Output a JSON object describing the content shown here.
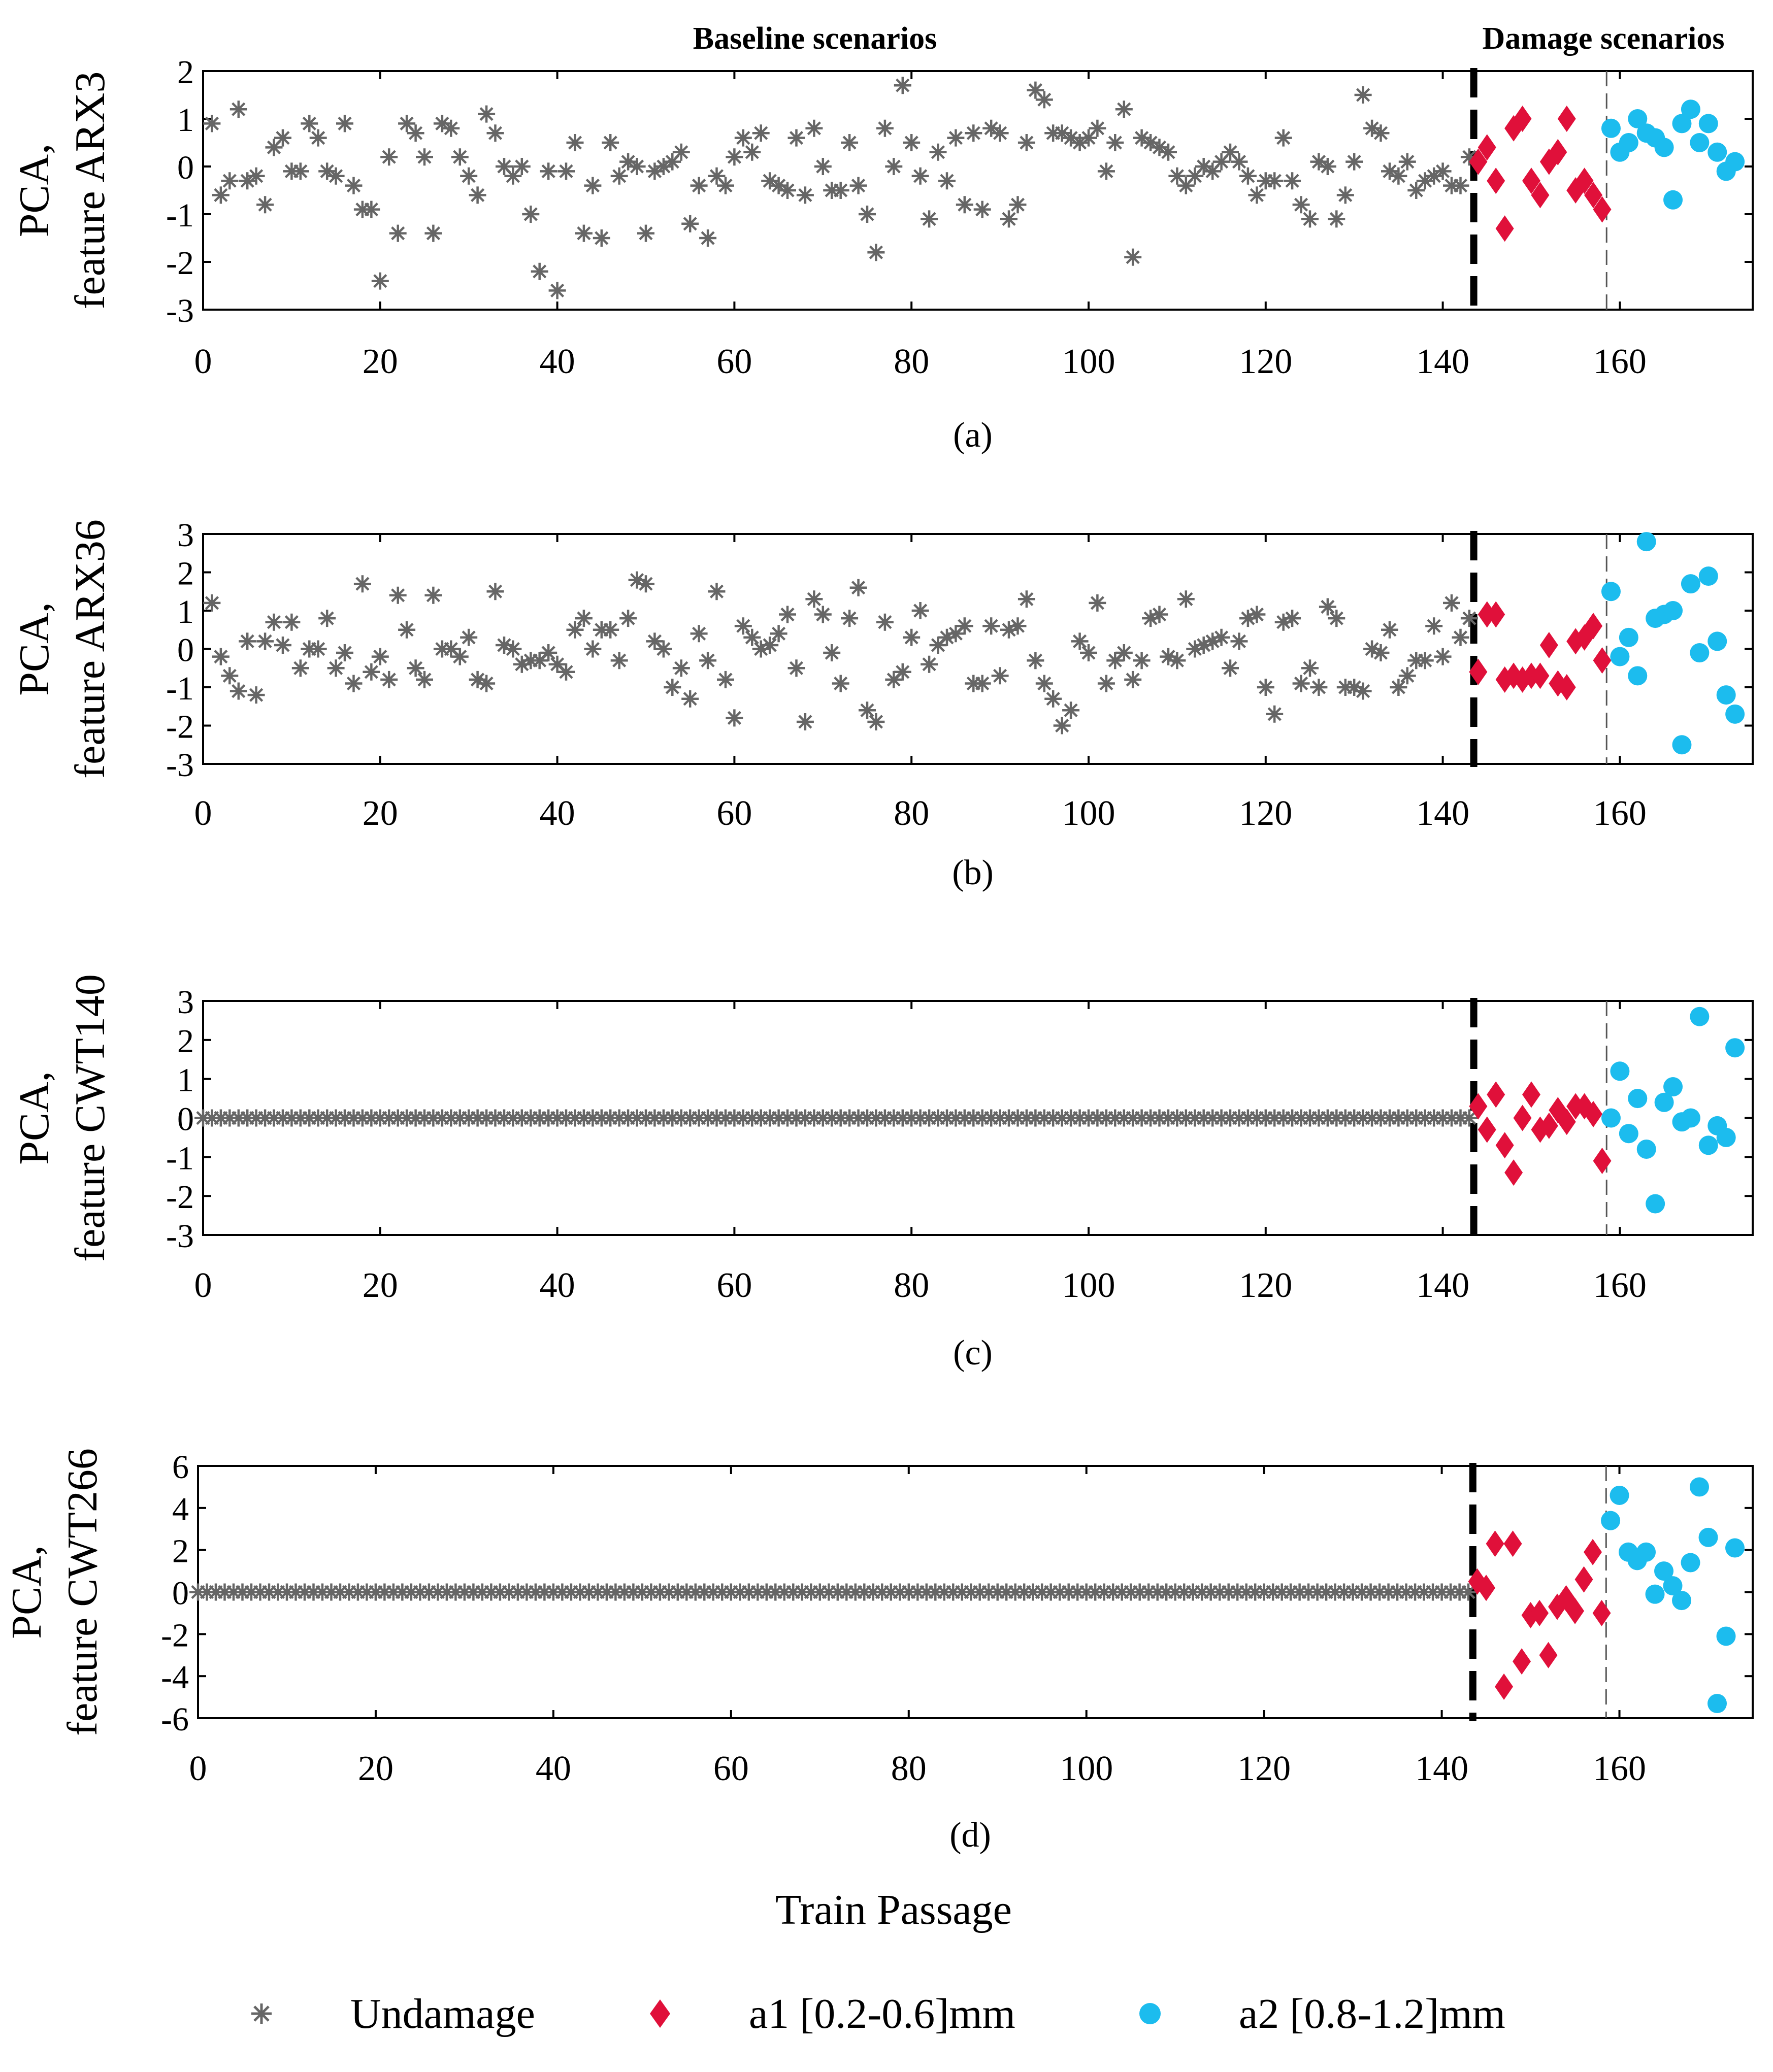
{
  "figure": {
    "baseline_label": "Baseline scenarios",
    "damage_label": "Damage scenarios",
    "xlabel": "Train Passage",
    "legend": [
      {
        "label": "Undamage",
        "marker": "star",
        "color": "#666666"
      },
      {
        "label": "a1 [0.2-0.6]mm",
        "marker": "diamond",
        "color": "#e0103a"
      },
      {
        "label": "a2 [0.8-1.2]mm",
        "marker": "circle",
        "color": "#1cbcee"
      }
    ],
    "colors": {
      "undamaged": "#666666",
      "a1": "#e0103a",
      "a2": "#1cbcee",
      "axis": "#000000"
    }
  },
  "chart_data": [
    {
      "type": "scatter",
      "panel": "(a)",
      "ylabel_line1": "PCA,",
      "ylabel_line2": "feature ARX3",
      "xlim": [
        0,
        175
      ],
      "ylim": [
        -3,
        2
      ],
      "xticks": [
        0,
        20,
        40,
        60,
        80,
        100,
        120,
        140,
        160
      ],
      "yticks": [
        -3,
        -2,
        -1,
        0,
        1,
        2
      ],
      "damage_start": 144,
      "a2_start": 159,
      "series": [
        {
          "name": "Undamage",
          "x": [
            1,
            2,
            3,
            4,
            5,
            6,
            7,
            8,
            9,
            10,
            11,
            12,
            13,
            14,
            15,
            16,
            17,
            18,
            19,
            20,
            21,
            22,
            23,
            24,
            25,
            26,
            27,
            28,
            29,
            30,
            31,
            32,
            33,
            34,
            35,
            36,
            37,
            38,
            39,
            40,
            41,
            42,
            43,
            44,
            45,
            46,
            47,
            48,
            49,
            50,
            51,
            52,
            53,
            54,
            55,
            56,
            57,
            58,
            59,
            60,
            61,
            62,
            63,
            64,
            65,
            66,
            67,
            68,
            69,
            70,
            71,
            72,
            73,
            74,
            75,
            76,
            77,
            78,
            79,
            80,
            81,
            82,
            83,
            84,
            85,
            86,
            87,
            88,
            89,
            90,
            91,
            92,
            93,
            94,
            95,
            96,
            97,
            98,
            99,
            100,
            101,
            102,
            103,
            104,
            105,
            106,
            107,
            108,
            109,
            110,
            111,
            112,
            113,
            114,
            115,
            116,
            117,
            118,
            119,
            120,
            121,
            122,
            123,
            124,
            125,
            126,
            127,
            128,
            129,
            130,
            131,
            132,
            133,
            134,
            135,
            136,
            137,
            138,
            139,
            140,
            141,
            142,
            143
          ],
          "y": [
            0.9,
            -0.6,
            -0.3,
            1.2,
            -0.3,
            -0.2,
            -0.8,
            0.4,
            0.6,
            -0.1,
            -0.1,
            0.9,
            0.6,
            -0.1,
            -0.2,
            0.9,
            -0.4,
            -0.9,
            -0.9,
            -2.4,
            0.2,
            -1.4,
            0.9,
            0.7,
            0.2,
            -1.4,
            0.9,
            0.8,
            0.2,
            -0.2,
            -0.6,
            1.1,
            0.7,
            0.0,
            -0.2,
            0.0,
            -1.0,
            -2.2,
            -0.1,
            -2.6,
            -0.1,
            0.5,
            -1.4,
            -0.4,
            -1.5,
            0.5,
            -0.2,
            0.1,
            0.0,
            -1.4,
            -0.1,
            0.0,
            0.1,
            0.3,
            -1.2,
            -0.4,
            -1.5,
            -0.2,
            -0.4,
            0.2,
            0.6,
            0.3,
            0.7,
            -0.3,
            -0.4,
            -0.5,
            0.6,
            -0.6,
            0.8,
            0.0,
            -0.5,
            -0.5,
            0.5,
            -0.4,
            -1.0,
            -1.8,
            0.8,
            0.0,
            1.7,
            0.5,
            -0.2,
            -1.1,
            0.3,
            -0.3,
            0.6,
            -0.8,
            0.7,
            -0.9,
            0.8,
            0.7,
            -1.1,
            -0.8,
            0.5,
            1.6,
            1.4,
            0.7,
            0.7,
            0.6,
            0.5,
            0.6,
            0.8,
            -0.1,
            0.5,
            1.2,
            -1.9,
            0.6,
            0.5,
            0.4,
            0.3,
            -0.2,
            -0.4,
            -0.2,
            0.0,
            -0.1,
            0.1,
            0.3,
            0.1,
            -0.2,
            -0.6,
            -0.3,
            -0.3,
            0.6,
            -0.3,
            -0.8,
            -1.1,
            0.1,
            0.0,
            -1.1,
            -0.6,
            0.1,
            1.5,
            0.8,
            0.7,
            -0.1,
            -0.2,
            0.1,
            -0.5,
            -0.3,
            -0.2,
            -0.1,
            -0.4,
            -0.4,
            0.2
          ]
        },
        {
          "name": "a1 [0.2-0.6]mm",
          "x": [
            144,
            145,
            146,
            147,
            148,
            149,
            150,
            151,
            152,
            153,
            154,
            155,
            156,
            157,
            158
          ],
          "y": [
            0.1,
            0.4,
            -0.3,
            -1.3,
            0.8,
            1.0,
            -0.3,
            -0.6,
            0.1,
            0.3,
            1.0,
            -0.5,
            -0.3,
            -0.6,
            -0.9
          ]
        },
        {
          "name": "a2 [0.8-1.2]mm",
          "x": [
            159,
            160,
            161,
            162,
            163,
            164,
            165,
            166,
            167,
            168,
            169,
            170,
            171,
            172,
            173
          ],
          "y": [
            0.8,
            0.3,
            0.5,
            1.0,
            0.7,
            0.6,
            0.4,
            -0.7,
            0.9,
            1.2,
            0.5,
            0.9,
            0.3,
            -0.1,
            0.1
          ]
        }
      ]
    },
    {
      "type": "scatter",
      "panel": "(b)",
      "ylabel_line1": "PCA,",
      "ylabel_line2": "feature ARX36",
      "xlim": [
        0,
        175
      ],
      "ylim": [
        -3,
        3
      ],
      "xticks": [
        0,
        20,
        40,
        60,
        80,
        100,
        120,
        140,
        160
      ],
      "yticks": [
        -3,
        -2,
        -1,
        0,
        1,
        2,
        3
      ],
      "damage_start": 144,
      "a2_start": 159,
      "series": [
        {
          "name": "Undamage",
          "x": [
            1,
            2,
            3,
            4,
            5,
            6,
            7,
            8,
            9,
            10,
            11,
            12,
            13,
            14,
            15,
            16,
            17,
            18,
            19,
            20,
            21,
            22,
            23,
            24,
            25,
            26,
            27,
            28,
            29,
            30,
            31,
            32,
            33,
            34,
            35,
            36,
            37,
            38,
            39,
            40,
            41,
            42,
            43,
            44,
            45,
            46,
            47,
            48,
            49,
            50,
            51,
            52,
            53,
            54,
            55,
            56,
            57,
            58,
            59,
            60,
            61,
            62,
            63,
            64,
            65,
            66,
            67,
            68,
            69,
            70,
            71,
            72,
            73,
            74,
            75,
            76,
            77,
            78,
            79,
            80,
            81,
            82,
            83,
            84,
            85,
            86,
            87,
            88,
            89,
            90,
            91,
            92,
            93,
            94,
            95,
            96,
            97,
            98,
            99,
            100,
            101,
            102,
            103,
            104,
            105,
            106,
            107,
            108,
            109,
            110,
            111,
            112,
            113,
            114,
            115,
            116,
            117,
            118,
            119,
            120,
            121,
            122,
            123,
            124,
            125,
            126,
            127,
            128,
            129,
            130,
            131,
            132,
            133,
            134,
            135,
            136,
            137,
            138,
            139,
            140,
            141,
            142,
            143
          ],
          "y": [
            1.2,
            -0.2,
            -0.7,
            -1.1,
            0.2,
            -1.2,
            0.2,
            0.7,
            0.1,
            0.7,
            -0.5,
            0.0,
            0.0,
            0.8,
            -0.5,
            -0.1,
            -0.9,
            1.7,
            -0.6,
            -0.2,
            -0.8,
            1.4,
            0.5,
            -0.5,
            -0.8,
            1.4,
            0.0,
            0.0,
            -0.2,
            0.3,
            -0.8,
            -0.9,
            1.5,
            0.1,
            0.0,
            -0.4,
            -0.3,
            -0.3,
            -0.1,
            -0.4,
            -0.6,
            0.5,
            0.8,
            0.0,
            0.5,
            0.5,
            -0.3,
            0.8,
            1.8,
            1.7,
            0.2,
            0.0,
            -1.0,
            -0.5,
            -1.3,
            0.4,
            -0.3,
            1.5,
            -0.8,
            -1.8,
            0.6,
            0.3,
            0.0,
            0.1,
            0.4,
            0.9,
            -0.5,
            -1.9,
            1.3,
            0.9,
            -0.1,
            -0.9,
            0.8,
            1.6,
            -1.6,
            -1.9,
            0.7,
            -0.8,
            -0.6,
            0.3,
            1.0,
            -0.4,
            0.1,
            0.3,
            0.4,
            0.6,
            -0.9,
            -0.9,
            0.6,
            -0.7,
            0.5,
            0.6,
            1.3,
            -0.3,
            -0.9,
            -1.3,
            -2.0,
            -1.6,
            0.2,
            -0.1,
            1.2,
            -0.9,
            -0.3,
            -0.1,
            -0.8,
            -0.3,
            0.8,
            0.9,
            -0.2,
            -0.3,
            1.3,
            0.0,
            0.1,
            0.2,
            0.3,
            -0.5,
            0.2,
            0.8,
            0.9,
            -1.0,
            -1.7,
            0.7,
            0.8,
            -0.9,
            -0.5,
            -1.0,
            1.1,
            0.8,
            -1.0,
            -1.0,
            -1.1,
            0.0,
            -0.1,
            0.5,
            -1.0,
            -0.7,
            -0.3,
            -0.3,
            0.6,
            -0.2,
            1.2,
            0.3,
            0.8
          ]
        },
        {
          "name": "a1 [0.2-0.6]mm",
          "x": [
            144,
            145,
            146,
            147,
            148,
            149,
            150,
            151,
            152,
            153,
            154,
            155,
            156,
            157,
            158
          ],
          "y": [
            -0.6,
            0.9,
            0.9,
            -0.8,
            -0.7,
            -0.8,
            -0.7,
            -0.7,
            0.1,
            -0.9,
            -1.0,
            0.2,
            0.3,
            0.6,
            -0.3
          ]
        },
        {
          "name": "a2 [0.8-1.2]mm",
          "x": [
            159,
            160,
            161,
            162,
            163,
            164,
            165,
            166,
            167,
            168,
            169,
            170,
            171,
            172,
            173
          ],
          "y": [
            1.5,
            -0.2,
            0.3,
            -0.7,
            2.8,
            0.8,
            0.9,
            1.0,
            -2.5,
            1.7,
            -0.1,
            1.9,
            0.2,
            -1.2,
            -1.7
          ]
        }
      ]
    },
    {
      "type": "scatter",
      "panel": "(c)",
      "ylabel_line1": "PCA,",
      "ylabel_line2": "feature CWT140",
      "xlim": [
        0,
        175
      ],
      "ylim": [
        -3,
        3
      ],
      "xticks": [
        0,
        20,
        40,
        60,
        80,
        100,
        120,
        140,
        160
      ],
      "yticks": [
        -3,
        -2,
        -1,
        0,
        1,
        2,
        3
      ],
      "damage_start": 144,
      "a2_start": 159,
      "undamaged_constant": 0,
      "series": [
        {
          "name": "Undamage",
          "x_range": [
            0,
            143
          ],
          "y_constant": 0
        },
        {
          "name": "a1 [0.2-0.6]mm",
          "x": [
            144,
            145,
            146,
            147,
            148,
            149,
            150,
            151,
            152,
            153,
            154,
            155,
            156,
            157,
            158
          ],
          "y": [
            0.3,
            -0.3,
            0.6,
            -0.7,
            -1.4,
            0.0,
            0.6,
            -0.3,
            -0.2,
            0.2,
            -0.1,
            0.3,
            0.3,
            0.1,
            -1.1
          ]
        },
        {
          "name": "a2 [0.8-1.2]mm",
          "x": [
            159,
            160,
            161,
            162,
            163,
            164,
            165,
            166,
            167,
            168,
            169,
            170,
            171,
            172,
            173
          ],
          "y": [
            0.0,
            1.2,
            -0.4,
            0.5,
            -0.8,
            -2.2,
            0.4,
            0.8,
            -0.1,
            0.0,
            2.6,
            -0.7,
            -0.2,
            -0.5,
            1.8
          ]
        }
      ]
    },
    {
      "type": "scatter",
      "panel": "(d)",
      "ylabel_line1": "PCA,",
      "ylabel_line2": "feature CWT266",
      "xlim": [
        0,
        175
      ],
      "ylim": [
        -6,
        6
      ],
      "xticks": [
        0,
        20,
        40,
        60,
        80,
        100,
        120,
        140,
        160
      ],
      "yticks": [
        -6,
        -4,
        -2,
        0,
        2,
        4,
        6
      ],
      "damage_start": 144,
      "a2_start": 159,
      "series": [
        {
          "name": "Undamage",
          "x_range": [
            0,
            143
          ],
          "y_constant": 0
        },
        {
          "name": "a1 [0.2-0.6]mm",
          "x": [
            144,
            145,
            146,
            147,
            148,
            149,
            150,
            151,
            152,
            153,
            154,
            155,
            156,
            157,
            158
          ],
          "y": [
            0.5,
            0.2,
            2.3,
            -4.5,
            2.3,
            -3.3,
            -1.1,
            -1.0,
            -3.0,
            -0.7,
            -0.3,
            -0.9,
            0.6,
            1.9,
            -1.0
          ]
        },
        {
          "name": "a2 [0.8-1.2]mm",
          "x": [
            159,
            160,
            161,
            162,
            163,
            164,
            165,
            166,
            167,
            168,
            169,
            170,
            171,
            172,
            173
          ],
          "y": [
            3.4,
            4.6,
            1.9,
            1.5,
            1.9,
            -0.1,
            1.0,
            0.3,
            -0.4,
            1.4,
            5.0,
            2.6,
            -5.3,
            -2.1,
            2.1
          ]
        }
      ]
    }
  ]
}
